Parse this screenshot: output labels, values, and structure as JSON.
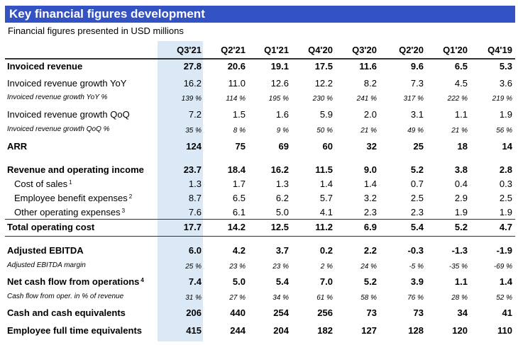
{
  "title": "Key financial figures development",
  "subtitle": "Financial figures presented in USD millions",
  "colors": {
    "title_bar": "#3352c4",
    "highlight_column": "#dbe9f7"
  },
  "columns": [
    "Q3'21",
    "Q2'21",
    "Q1'21",
    "Q4'20",
    "Q3'20",
    "Q2'20",
    "Q1'20",
    "Q4'19"
  ],
  "rows": [
    {
      "label": "Invoiced revenue",
      "note": "",
      "values": [
        "27.8",
        "20.6",
        "19.1",
        "17.5",
        "11.6",
        "9.6",
        "6.5",
        "5.3"
      ]
    },
    {
      "label": "Invoiced revenue growth YoY",
      "note": "",
      "values": [
        "16.2",
        "11.0",
        "12.6",
        "12.2",
        "8.2",
        "7.3",
        "4.5",
        "3.6"
      ]
    },
    {
      "label": "Invoiced revenue growth YoY %",
      "note": "",
      "values": [
        "139 %",
        "114 %",
        "195 %",
        "230 %",
        "241 %",
        "317 %",
        "222 %",
        "219 %"
      ]
    },
    {
      "label": "Invoiced revenue growth QoQ",
      "note": "",
      "values": [
        "7.2",
        "1.5",
        "1.6",
        "5.9",
        "2.0",
        "3.1",
        "1.1",
        "1.9"
      ]
    },
    {
      "label": "Invoiced revenue growth QoQ %",
      "note": "",
      "values": [
        "35 %",
        "8 %",
        "9 %",
        "50 %",
        "21 %",
        "49 %",
        "21 %",
        "56 %"
      ]
    },
    {
      "label": "ARR",
      "note": "",
      "values": [
        "124",
        "75",
        "69",
        "60",
        "32",
        "25",
        "18",
        "14"
      ]
    },
    {
      "label": "Revenue and operating income",
      "note": "",
      "values": [
        "23.7",
        "18.4",
        "16.2",
        "11.5",
        "9.0",
        "5.2",
        "3.8",
        "2.8"
      ]
    },
    {
      "label": "Cost of sales",
      "note": "1",
      "values": [
        "1.3",
        "1.7",
        "1.3",
        "1.4",
        "1.4",
        "0.7",
        "0.4",
        "0.3"
      ]
    },
    {
      "label": "Employee benefit expenses",
      "note": "2",
      "values": [
        "8.7",
        "6.5",
        "6.2",
        "5.7",
        "3.2",
        "2.5",
        "2.9",
        "2.5"
      ]
    },
    {
      "label": "Other operating expenses",
      "note": "3",
      "values": [
        "7.6",
        "6.1",
        "5.0",
        "4.1",
        "2.3",
        "2.3",
        "1.9",
        "1.9"
      ]
    },
    {
      "label": "Total operating cost",
      "note": "",
      "values": [
        "17.7",
        "14.2",
        "12.5",
        "11.2",
        "6.9",
        "5.4",
        "5.2",
        "4.7"
      ]
    },
    {
      "label": "Adjusted EBITDA",
      "note": "",
      "values": [
        "6.0",
        "4.2",
        "3.7",
        "0.2",
        "2.2",
        "-0.3",
        "-1.3",
        "-1.9"
      ]
    },
    {
      "label": "Adjusted EBITDA margin",
      "note": "",
      "values": [
        "25 %",
        "23 %",
        "23 %",
        "2 %",
        "24 %",
        "-5 %",
        "-35 %",
        "-69 %"
      ]
    },
    {
      "label": "Net cash flow from operations",
      "note": "4",
      "values": [
        "7.4",
        "5.0",
        "5.4",
        "7.0",
        "5.2",
        "3.9",
        "1.1",
        "1.4"
      ]
    },
    {
      "label": "Cash flow from oper. in % of revenue",
      "note": "",
      "values": [
        "31 %",
        "27 %",
        "34 %",
        "61 %",
        "58 %",
        "76 %",
        "28 %",
        "52 %"
      ]
    },
    {
      "label": "Cash and cash equivalents",
      "note": "",
      "values": [
        "206",
        "440",
        "254",
        "256",
        "73",
        "73",
        "34",
        "41"
      ]
    },
    {
      "label": "Employee full time equivalents",
      "note": "",
      "values": [
        "415",
        "244",
        "204",
        "182",
        "127",
        "128",
        "120",
        "110"
      ]
    }
  ]
}
